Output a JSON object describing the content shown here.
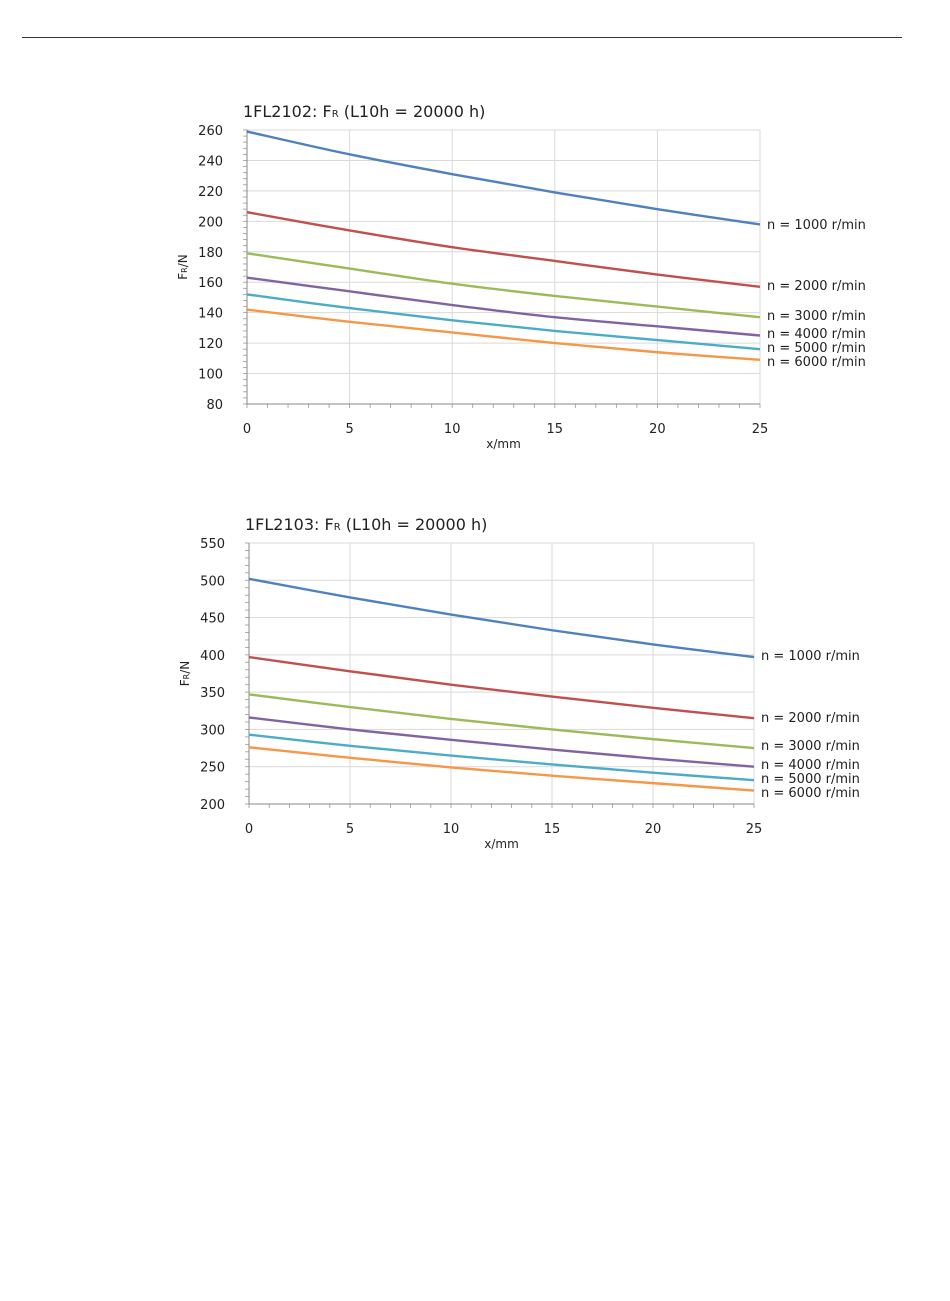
{
  "chart_data": [
    {
      "type": "line",
      "title": "1FL2102: F",
      "title_sub": "R",
      "title_rest": " (L10h = 20000 h)",
      "xlabel": "x/mm",
      "ylabel": "F",
      "ylabel_sub": "R",
      "ylabel_rest": "/N",
      "xlim": [
        0,
        25
      ],
      "ylim": [
        80,
        260
      ],
      "xticks": [
        0,
        5,
        10,
        15,
        20,
        25
      ],
      "yticks": [
        80,
        100,
        120,
        140,
        160,
        180,
        200,
        220,
        240,
        260
      ],
      "grid": true,
      "series": [
        {
          "name": "n = 1000 r/min",
          "color": "#4f81bd",
          "x": [
            0,
            5,
            10,
            15,
            20,
            25
          ],
          "values": [
            259,
            244,
            231,
            219,
            208,
            198
          ]
        },
        {
          "name": "n = 2000 r/min",
          "color": "#c0504d",
          "x": [
            0,
            5,
            10,
            15,
            20,
            25
          ],
          "values": [
            206,
            194,
            183,
            174,
            165,
            157
          ]
        },
        {
          "name": "n = 3000 r/min",
          "color": "#9bbb59",
          "x": [
            0,
            5,
            10,
            15,
            20,
            25
          ],
          "values": [
            179,
            169,
            159,
            151,
            144,
            137
          ]
        },
        {
          "name": "n = 4000 r/min",
          "color": "#8064a2",
          "x": [
            0,
            5,
            10,
            15,
            20,
            25
          ],
          "values": [
            163,
            154,
            145,
            137,
            131,
            125
          ]
        },
        {
          "name": "n = 5000 r/min",
          "color": "#4bacc6",
          "x": [
            0,
            5,
            10,
            15,
            20,
            25
          ],
          "values": [
            152,
            143,
            135,
            128,
            122,
            116
          ]
        },
        {
          "name": "n = 6000 r/min",
          "color": "#f79646",
          "x": [
            0,
            5,
            10,
            15,
            20,
            25
          ],
          "values": [
            142,
            134,
            127,
            120,
            114,
            109
          ]
        }
      ]
    },
    {
      "type": "line",
      "title": "1FL2103: F",
      "title_sub": "R",
      "title_rest": " (L10h = 20000 h)",
      "xlabel": "x/mm",
      "ylabel": "F",
      "ylabel_sub": "R",
      "ylabel_rest": "/N",
      "xlim": [
        0,
        25
      ],
      "ylim": [
        200,
        550
      ],
      "xticks": [
        0,
        5,
        10,
        15,
        20,
        25
      ],
      "yticks": [
        200,
        250,
        300,
        350,
        400,
        450,
        500,
        550
      ],
      "grid": true,
      "series": [
        {
          "name": "n = 1000 r/min",
          "color": "#4f81bd",
          "x": [
            0,
            5,
            10,
            15,
            20,
            25
          ],
          "values": [
            502,
            477,
            454,
            433,
            414,
            397
          ]
        },
        {
          "name": "n = 2000 r/min",
          "color": "#c0504d",
          "x": [
            0,
            5,
            10,
            15,
            20,
            25
          ],
          "values": [
            397,
            378,
            360,
            344,
            329,
            315
          ]
        },
        {
          "name": "n = 3000 r/min",
          "color": "#9bbb59",
          "x": [
            0,
            5,
            10,
            15,
            20,
            25
          ],
          "values": [
            347,
            330,
            314,
            300,
            287,
            275
          ]
        },
        {
          "name": "n = 4000 r/min",
          "color": "#8064a2",
          "x": [
            0,
            5,
            10,
            15,
            20,
            25
          ],
          "values": [
            316,
            300,
            286,
            273,
            261,
            250
          ]
        },
        {
          "name": "n = 5000 r/min",
          "color": "#4bacc6",
          "x": [
            0,
            5,
            10,
            15,
            20,
            25
          ],
          "values": [
            293,
            278,
            265,
            253,
            242,
            232
          ]
        },
        {
          "name": "n = 6000 r/min",
          "color": "#f79646",
          "x": [
            0,
            5,
            10,
            15,
            20,
            25
          ],
          "values": [
            276,
            262,
            249,
            238,
            228,
            218
          ]
        }
      ]
    }
  ]
}
